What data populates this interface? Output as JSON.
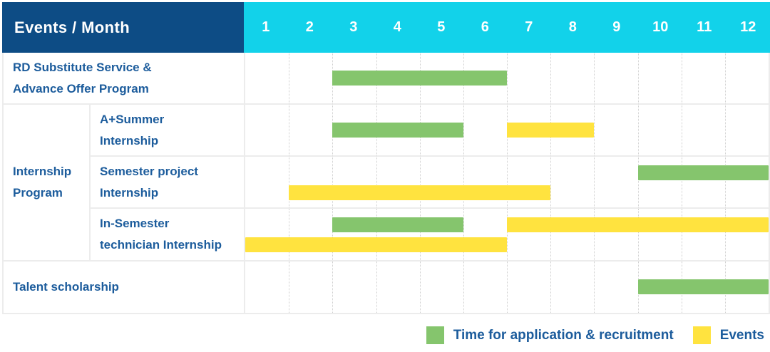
{
  "title_header": {
    "label": "Events / Month",
    "months": [
      "1",
      "2",
      "3",
      "4",
      "5",
      "6",
      "7",
      "8",
      "9",
      "10",
      "11",
      "12"
    ]
  },
  "row_labels": {
    "rd": {
      "line1": "RD Substitute Service &",
      "line2": "Advance Offer Program"
    },
    "group": {
      "line1": "Internship",
      "line2": "Program"
    },
    "a_summer": {
      "line1": "A+Summer",
      "line2": "Internship"
    },
    "semester_project": {
      "line1": "Semester project",
      "line2": "Internship"
    },
    "in_semester": {
      "line1": "In-Semester",
      "line2": "technician Internship"
    },
    "talent": {
      "line1": "Talent scholarship",
      "line2": ""
    }
  },
  "legend": {
    "green_label": "Time for application & recruitment",
    "yellow_label": "Events"
  },
  "colors": {
    "header_bg": "#0d4c85",
    "months_bg": "#12d2ea",
    "green": "#85c56d",
    "yellow": "#ffe33f",
    "text_blue": "#1c5c9c"
  },
  "chart_data": {
    "type": "bar",
    "subtype": "gantt",
    "title": "Events / Month",
    "x_tick_labels": [
      "1",
      "2",
      "3",
      "4",
      "5",
      "6",
      "7",
      "8",
      "9",
      "10",
      "11",
      "12"
    ],
    "x_range_months": [
      1,
      12
    ],
    "grid": "dotted vertical month separators, solid light row borders",
    "legend_position": "bottom-right",
    "legend": [
      {
        "name": "Time for application & recruitment",
        "color": "#85c56d"
      },
      {
        "name": "Events",
        "color": "#ffe33f"
      }
    ],
    "rows": [
      {
        "category": "RD Substitute Service & Advance Offer Program",
        "group": null,
        "bars": [
          {
            "series": "Time for application & recruitment",
            "color_key": "green",
            "start_month": 3,
            "end_month": 6,
            "band": "middle"
          }
        ]
      },
      {
        "category": "A+Summer Internship",
        "group": "Internship Program",
        "bars": [
          {
            "series": "Time for application & recruitment",
            "color_key": "green",
            "start_month": 3,
            "end_month": 5,
            "band": "middle"
          },
          {
            "series": "Events",
            "color_key": "yellow",
            "start_month": 7,
            "end_month": 8,
            "band": "middle"
          }
        ]
      },
      {
        "category": "Semester project Internship",
        "group": "Internship Program",
        "bars": [
          {
            "series": "Time for application & recruitment",
            "color_key": "green",
            "start_month": 10,
            "end_month": 12,
            "band": "top"
          },
          {
            "series": "Events",
            "color_key": "yellow",
            "start_month": 2,
            "end_month": 7,
            "band": "bottom"
          }
        ]
      },
      {
        "category": "In-Semester technician Internship",
        "group": "Internship Program",
        "bars": [
          {
            "series": "Time for application & recruitment",
            "color_key": "green",
            "start_month": 3,
            "end_month": 5,
            "band": "top"
          },
          {
            "series": "Events",
            "color_key": "yellow",
            "start_month": 7,
            "end_month": 12,
            "band": "top"
          },
          {
            "series": "Events",
            "color_key": "yellow",
            "start_month": 1,
            "end_month": 6,
            "band": "bottom"
          }
        ]
      },
      {
        "category": "Talent scholarship",
        "group": null,
        "bars": [
          {
            "series": "Time for application & recruitment",
            "color_key": "green",
            "start_month": 10,
            "end_month": 12,
            "band": "middle"
          }
        ]
      }
    ]
  }
}
